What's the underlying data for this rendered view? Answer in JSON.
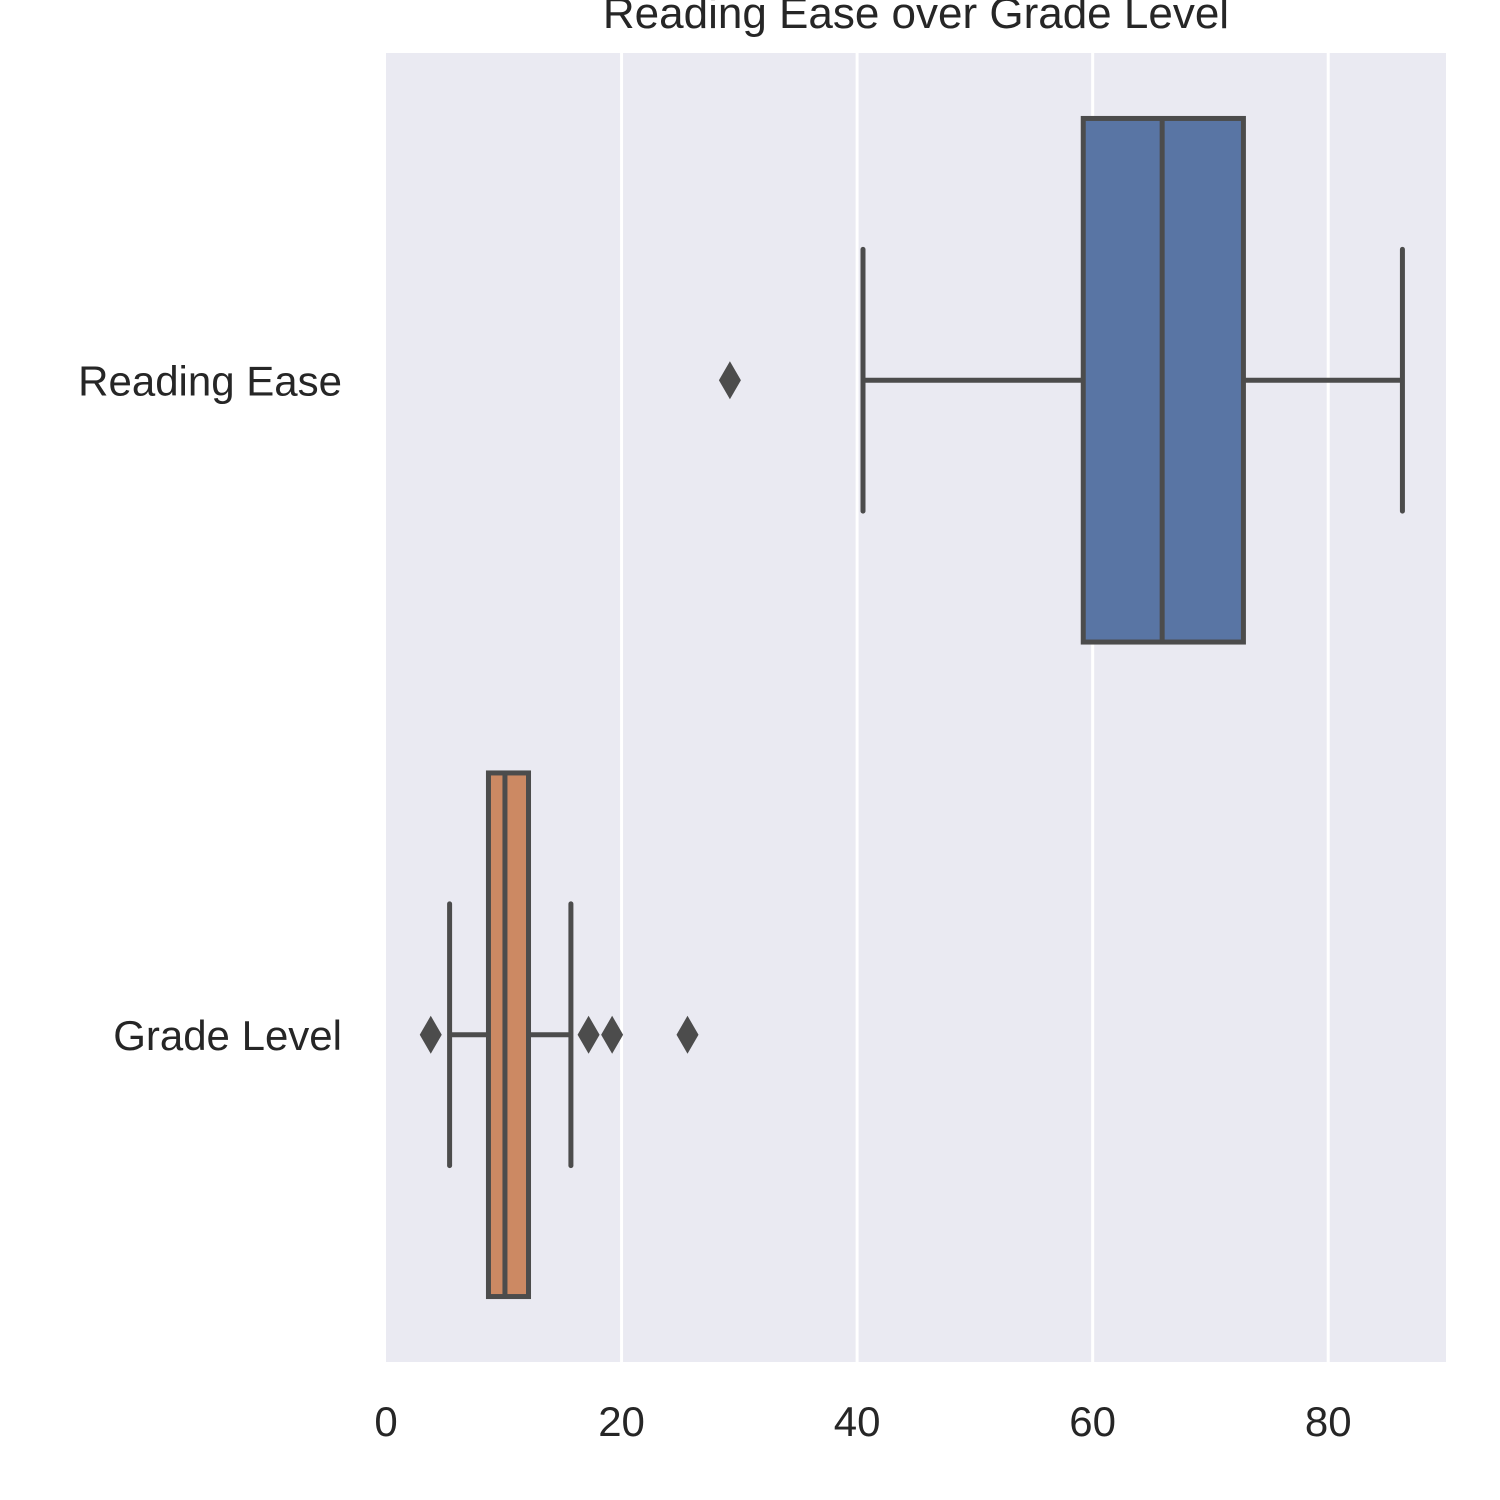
{
  "chart_data": {
    "type": "boxplot",
    "orientation": "horizontal",
    "title": "Reading Ease over Grade Level",
    "xlabel": "",
    "ylabel": "",
    "xlim": [
      0,
      90
    ],
    "x_ticks": [
      0,
      20,
      40,
      60,
      80
    ],
    "x_tick_labels": [
      "0",
      "20",
      "40",
      "60",
      "80"
    ],
    "grid": true,
    "background": "#EAEAF2",
    "grid_color": "#FFFFFF",
    "categories": [
      "Reading Ease",
      "Grade Level"
    ],
    "boxes": [
      {
        "label": "Reading Ease",
        "color": "#5975A4",
        "whisker_low": 40.5,
        "q1": 59.2,
        "median": 65.9,
        "q3": 72.8,
        "whisker_high": 86.3,
        "outliers": [
          29.2
        ]
      },
      {
        "label": "Grade Level",
        "color": "#CC8963",
        "whisker_low": 5.4,
        "q1": 8.7,
        "median": 10.1,
        "q3": 12.1,
        "whisker_high": 15.7,
        "outliers": [
          3.8,
          17.2,
          19.2,
          25.6
        ]
      }
    ]
  }
}
